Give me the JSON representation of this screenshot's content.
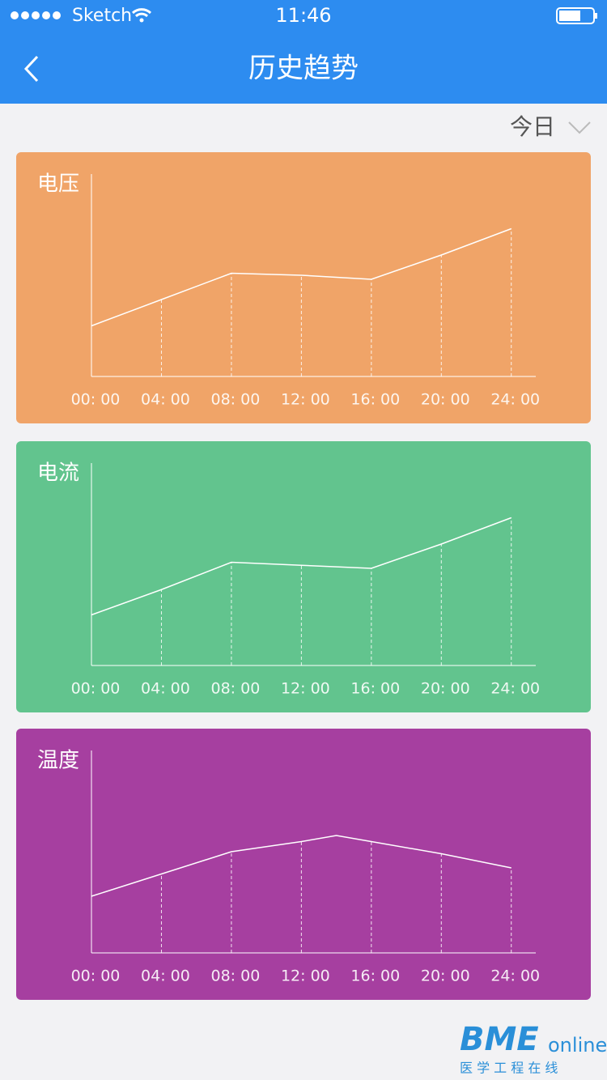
{
  "status_bar": {
    "carrier": "Sketch",
    "time": "11:46"
  },
  "nav": {
    "title": "历史趋势"
  },
  "filter": {
    "label": "今日"
  },
  "chart_data": [
    {
      "type": "line",
      "title": "电压",
      "color": "#ffffff",
      "background": "#f0a468",
      "x": [
        0,
        4,
        8,
        12,
        16,
        20,
        24
      ],
      "values": [
        25,
        38,
        51,
        50,
        48,
        60,
        73
      ],
      "xlim": [
        0,
        25.4
      ],
      "ylim": [
        0,
        100
      ],
      "xticks": [
        {
          "value": 0,
          "label": "00: 00"
        },
        {
          "value": 4,
          "label": "04: 00"
        },
        {
          "value": 8,
          "label": "08: 00"
        },
        {
          "value": 12,
          "label": "12: 00"
        },
        {
          "value": 16,
          "label": "16: 00"
        },
        {
          "value": 20,
          "label": "20: 00"
        },
        {
          "value": 24,
          "label": "24: 00"
        }
      ],
      "grid": true
    },
    {
      "type": "line",
      "title": "电流",
      "color": "#ffffff",
      "background": "#62c48e",
      "x": [
        0,
        4,
        8,
        12,
        16,
        20,
        24
      ],
      "values": [
        25,
        37.5,
        51,
        49.5,
        48,
        60,
        73
      ],
      "xlim": [
        0,
        25.4
      ],
      "ylim": [
        0,
        100
      ],
      "xticks": [
        {
          "value": 0,
          "label": "00: 00"
        },
        {
          "value": 4,
          "label": "04: 00"
        },
        {
          "value": 8,
          "label": "08: 00"
        },
        {
          "value": 12,
          "label": "12: 00"
        },
        {
          "value": 16,
          "label": "16: 00"
        },
        {
          "value": 20,
          "label": "20: 00"
        },
        {
          "value": 24,
          "label": "24: 00"
        }
      ],
      "grid": true
    },
    {
      "type": "line",
      "title": "温度",
      "color": "#ffffff",
      "background": "#a63fa0",
      "x": [
        0,
        4,
        8,
        12,
        14,
        16,
        20,
        24
      ],
      "values": [
        28,
        39,
        50,
        55,
        58,
        55,
        49,
        42
      ],
      "xlim": [
        0,
        25.4
      ],
      "ylim": [
        0,
        100
      ],
      "xticks": [
        {
          "value": 0,
          "label": "00: 00"
        },
        {
          "value": 4,
          "label": "04: 00"
        },
        {
          "value": 8,
          "label": "08: 00"
        },
        {
          "value": 12,
          "label": "12: 00"
        },
        {
          "value": 16,
          "label": "16: 00"
        },
        {
          "value": 20,
          "label": "20: 00"
        },
        {
          "value": 24,
          "label": "24: 00"
        }
      ],
      "grid": true
    }
  ],
  "watermark": {
    "brand": "BME",
    "suffix": "online",
    "tagline": "医 学 工 程 在 线"
  }
}
